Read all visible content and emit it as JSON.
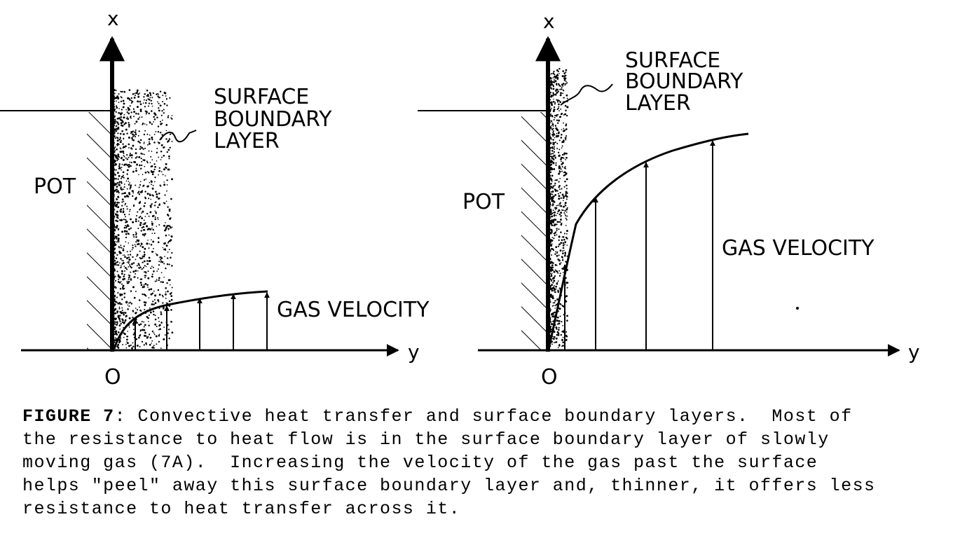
{
  "panels": [
    {
      "x_axis_label": "x",
      "y_axis_label": "y",
      "origin_label": "O",
      "pot_label": "POT",
      "boundary_label": [
        "SURFACE",
        "BOUNDARY",
        "LAYER"
      ],
      "velocity_label": "GAS VELOCITY"
    },
    {
      "x_axis_label": "x",
      "y_axis_label": "y",
      "origin_label": "O",
      "pot_label": "POT",
      "boundary_label": [
        "SURFACE",
        "BOUNDARY",
        "LAYER"
      ],
      "velocity_label": "GAS VELOCITY"
    }
  ],
  "caption": {
    "figure_number": "FIGURE 7",
    "lines": [
      ": Convective heat transfer and surface boundary layers.  Most of",
      "the resistance to heat flow is in the surface boundary layer of slowly",
      "moving gas (7A).  Increasing the velocity of the gas past the surface",
      "helps \"peel\" away this surface boundary layer and, thinner, it offers less",
      "resistance to heat transfer across it."
    ]
  }
}
